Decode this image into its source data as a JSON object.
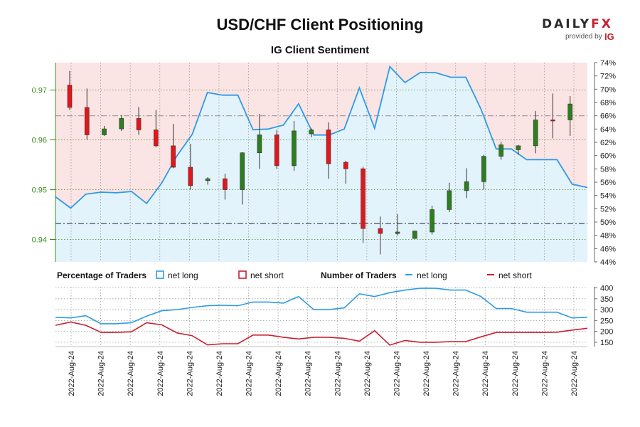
{
  "header": {
    "title": "USD/CHF Client Positioning",
    "subtitle": "IG Client Sentiment",
    "brand": "DAILY",
    "brand_fx": "FX",
    "provided_by": "provided by",
    "ig": "IG"
  },
  "colors": {
    "long": "#2d9be6",
    "short": "#c8202f",
    "up_candle": "#2e7d1e",
    "down_candle": "#e3161b",
    "long_fill": "#e3f3fb",
    "short_fill": "#fbe4e4",
    "price_axis": "#3e8e1e"
  },
  "chart_data": [
    {
      "type": "candlestick",
      "price_axis": {
        "ticks": [
          "0.97",
          "0.96",
          "0.95",
          "0.94"
        ],
        "ylim": [
          0.9355,
          0.9755
        ]
      },
      "sentiment_axis": {
        "ticks": [
          "74%",
          "72%",
          "70%",
          "68%",
          "66%",
          "64%",
          "62%",
          "60%",
          "58%",
          "56%",
          "54%",
          "52%",
          "50%",
          "48%",
          "46%",
          "44%"
        ],
        "ylim": [
          44,
          74
        ]
      },
      "reference_levels": {
        "price": 0.9432,
        "sentiment_pct": 66
      },
      "x_labels": [
        "2022-Aug-24",
        "2022-Aug-24",
        "2022-Aug-24",
        "2022-Aug-24",
        "2022-Aug-24",
        "2022-Aug-24",
        "2022-Aug-24",
        "2022-Aug-24",
        "2022-Aug-24",
        "2022-Aug-24",
        "2022-Aug-24",
        "2022-Aug-24",
        "2022-Aug-24",
        "2022-Aug-24",
        "2022-Aug-24",
        "2022-Aug-24",
        "2022-Aug-24",
        "2022-Aug-24"
      ],
      "candles": [
        {
          "o": 0.971,
          "h": 0.9738,
          "l": 0.966,
          "c": 0.9665
        },
        {
          "o": 0.9665,
          "h": 0.9703,
          "l": 0.96,
          "c": 0.961
        },
        {
          "o": 0.961,
          "h": 0.9628,
          "l": 0.9608,
          "c": 0.9622
        },
        {
          "o": 0.9622,
          "h": 0.965,
          "l": 0.9618,
          "c": 0.9643
        },
        {
          "o": 0.9643,
          "h": 0.9666,
          "l": 0.961,
          "c": 0.962
        },
        {
          "o": 0.962,
          "h": 0.966,
          "l": 0.9585,
          "c": 0.9588
        },
        {
          "o": 0.9588,
          "h": 0.9632,
          "l": 0.9543,
          "c": 0.9545
        },
        {
          "o": 0.9545,
          "h": 0.9592,
          "l": 0.95,
          "c": 0.9508
        },
        {
          "o": 0.9518,
          "h": 0.9525,
          "l": 0.951,
          "c": 0.9522
        },
        {
          "o": 0.9522,
          "h": 0.9532,
          "l": 0.948,
          "c": 0.95
        },
        {
          "o": 0.95,
          "h": 0.9575,
          "l": 0.947,
          "c": 0.9574
        },
        {
          "o": 0.9574,
          "h": 0.9652,
          "l": 0.9542,
          "c": 0.961
        },
        {
          "o": 0.961,
          "h": 0.962,
          "l": 0.9542,
          "c": 0.9548
        },
        {
          "o": 0.9548,
          "h": 0.9638,
          "l": 0.9538,
          "c": 0.9618
        },
        {
          "o": 0.9612,
          "h": 0.9623,
          "l": 0.9605,
          "c": 0.962
        },
        {
          "o": 0.962,
          "h": 0.9635,
          "l": 0.9522,
          "c": 0.9552
        },
        {
          "o": 0.9555,
          "h": 0.9558,
          "l": 0.9512,
          "c": 0.9542
        },
        {
          "o": 0.9542,
          "h": 0.9546,
          "l": 0.9393,
          "c": 0.9422
        },
        {
          "o": 0.9422,
          "h": 0.9446,
          "l": 0.937,
          "c": 0.9412
        },
        {
          "o": 0.9412,
          "h": 0.9451,
          "l": 0.9408,
          "c": 0.9415
        },
        {
          "o": 0.9402,
          "h": 0.9418,
          "l": 0.9401,
          "c": 0.9417
        },
        {
          "o": 0.9415,
          "h": 0.9468,
          "l": 0.941,
          "c": 0.946
        },
        {
          "o": 0.946,
          "h": 0.9514,
          "l": 0.9455,
          "c": 0.9498
        },
        {
          "o": 0.9498,
          "h": 0.9543,
          "l": 0.9483,
          "c": 0.9516
        },
        {
          "o": 0.9516,
          "h": 0.957,
          "l": 0.95,
          "c": 0.9567
        },
        {
          "o": 0.9567,
          "h": 0.9596,
          "l": 0.956,
          "c": 0.959
        },
        {
          "o": 0.958,
          "h": 0.959,
          "l": 0.957,
          "c": 0.9588
        },
        {
          "o": 0.9588,
          "h": 0.9658,
          "l": 0.9573,
          "c": 0.964
        },
        {
          "o": 0.964,
          "h": 0.9693,
          "l": 0.9603,
          "c": 0.9638
        },
        {
          "o": 0.964,
          "h": 0.9688,
          "l": 0.9608,
          "c": 0.9672
        }
      ],
      "net_long_pct": [
        53.8,
        52.1,
        54.2,
        54.5,
        54.4,
        54.6,
        52.8,
        55.9,
        60.0,
        63.2,
        69.5,
        69.1,
        69.1,
        63.9,
        64.0,
        64.6,
        67.8,
        63.1,
        63.1,
        64.0,
        70.2,
        64.1,
        73.4,
        71.0,
        72.5,
        72.5,
        71.8,
        71.8,
        67.0,
        61.0,
        61.0,
        59.4,
        59.4,
        59.4,
        55.7,
        55.2
      ]
    },
    {
      "type": "line",
      "title": "Number of Traders",
      "legend": {
        "percentage_title": "Percentage of Traders",
        "net_long": "net long",
        "net_short": "net short",
        "number_title": "Number of Traders"
      },
      "y_ticks": [
        "400",
        "350",
        "300",
        "250",
        "200",
        "150"
      ],
      "ylim": [
        130,
        405
      ],
      "series": [
        {
          "name": "net long",
          "values": [
            265,
            262,
            272,
            235,
            235,
            240,
            270,
            295,
            300,
            310,
            318,
            320,
            318,
            335,
            335,
            330,
            360,
            300,
            300,
            308,
            373,
            360,
            378,
            390,
            398,
            398,
            390,
            390,
            360,
            305,
            305,
            288,
            288,
            288,
            262,
            265
          ]
        },
        {
          "name": "net short",
          "values": [
            228,
            243,
            228,
            195,
            195,
            198,
            240,
            230,
            193,
            180,
            138,
            143,
            143,
            183,
            183,
            173,
            165,
            173,
            173,
            168,
            155,
            203,
            137,
            158,
            150,
            150,
            153,
            153,
            175,
            195,
            195,
            195,
            195,
            196,
            206,
            214
          ]
        }
      ]
    }
  ]
}
